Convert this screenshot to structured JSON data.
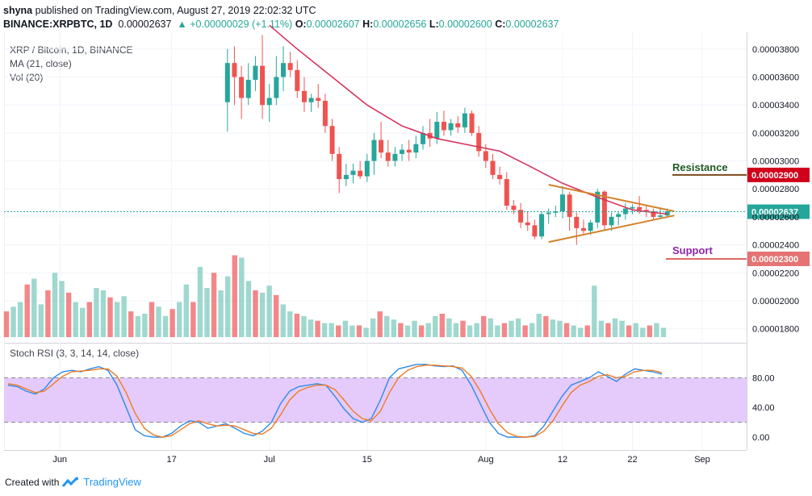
{
  "header": {
    "line1_user": "shyna",
    "line1_text": " published on TradingView.com, August 27, 2019 22:02:32 UTC",
    "symbol": "BINANCE:XRPBTC, 1D",
    "price": "0.00002637",
    "change": "▲ +0.00000029 (+1.11%)",
    "o_label": "O:",
    "o_val": "0.00002607",
    "h_label": "H:",
    "h_val": "0.00002656",
    "l_label": "L:",
    "l_val": "0.00002600",
    "c_label": "C:",
    "c_val": "0.00002637"
  },
  "legend": {
    "title": "XRP / Bitcoin, 1D, BINANCE",
    "ma": "MA (21, close)",
    "vol": "Vol (20)"
  },
  "annotations": {
    "resistance": "Resistance",
    "resistance_price": "0.00002900",
    "support": "Support",
    "support_price": "0.00002300",
    "last_price": "0.00002637"
  },
  "footer": {
    "created": "Created with",
    "brand": "TradingView"
  },
  "colors": {
    "up": "#7fcbbe",
    "down": "#ef5f62",
    "up_body": "#26a69a",
    "down_body": "#ef5350",
    "ma": "#d6335c",
    "trend": "#d3812b",
    "resistance_line": "#7a4a1a",
    "support_line": "#e06666",
    "rsi_k": "#2f8ae6",
    "rsi_d": "#f07b24",
    "rsi_band": "#e4cbfb"
  },
  "chart_data": {
    "type": "candlestick",
    "price_axis": {
      "ticks": [
        "0.00003800",
        "0.00003600",
        "0.00003400",
        "0.00003200",
        "0.00003000",
        "0.00002800",
        "0.00002600",
        "0.00002400",
        "0.00002200",
        "0.00002000",
        "0.00001800"
      ],
      "ylim": [
        1.7e-05,
        3.92e-05
      ]
    },
    "x_axis": {
      "ticks": [
        "Jun",
        "17",
        "Jul",
        "15",
        "Aug",
        "12",
        "22",
        "Sep"
      ]
    },
    "candles": [
      {
        "date": "2019-06-25",
        "o": 3.42e-05,
        "h": 3.8e-05,
        "l": 3.21e-05,
        "c": 3.7e-05
      },
      {
        "date": "2019-06-26",
        "o": 3.7e-05,
        "h": 3.82e-05,
        "l": 3.4e-05,
        "c": 3.6e-05
      },
      {
        "date": "2019-06-27",
        "o": 3.6e-05,
        "h": 3.68e-05,
        "l": 3.3e-05,
        "c": 3.45e-05
      },
      {
        "date": "2019-06-28",
        "o": 3.45e-05,
        "h": 3.7e-05,
        "l": 3.4e-05,
        "c": 3.58e-05
      },
      {
        "date": "2019-06-29",
        "o": 3.58e-05,
        "h": 3.75e-05,
        "l": 3.5e-05,
        "c": 3.68e-05
      },
      {
        "date": "2019-06-30",
        "o": 3.68e-05,
        "h": 3.9e-05,
        "l": 3.3e-05,
        "c": 3.4e-05
      },
      {
        "date": "2019-07-01",
        "o": 3.4e-05,
        "h": 3.55e-05,
        "l": 3.28e-05,
        "c": 3.45e-05
      },
      {
        "date": "2019-07-02",
        "o": 3.45e-05,
        "h": 3.75e-05,
        "l": 3.4e-05,
        "c": 3.6e-05
      },
      {
        "date": "2019-07-03",
        "o": 3.6e-05,
        "h": 3.82e-05,
        "l": 3.5e-05,
        "c": 3.7e-05
      },
      {
        "date": "2019-07-04",
        "o": 3.7e-05,
        "h": 3.78e-05,
        "l": 3.6e-05,
        "c": 3.65e-05
      },
      {
        "date": "2019-07-05",
        "o": 3.65e-05,
        "h": 3.72e-05,
        "l": 3.45e-05,
        "c": 3.5e-05
      },
      {
        "date": "2019-07-06",
        "o": 3.5e-05,
        "h": 3.6e-05,
        "l": 3.35e-05,
        "c": 3.42e-05
      },
      {
        "date": "2019-07-07",
        "o": 3.42e-05,
        "h": 3.48e-05,
        "l": 3.35e-05,
        "c": 3.45e-05
      },
      {
        "date": "2019-07-08",
        "o": 3.45e-05,
        "h": 3.55e-05,
        "l": 3.38e-05,
        "c": 3.43e-05
      },
      {
        "date": "2019-07-09",
        "o": 3.43e-05,
        "h": 3.48e-05,
        "l": 3.2e-05,
        "c": 3.25e-05
      },
      {
        "date": "2019-07-10",
        "o": 3.25e-05,
        "h": 3.3e-05,
        "l": 3e-05,
        "c": 3.05e-05
      },
      {
        "date": "2019-07-11",
        "o": 3.05e-05,
        "h": 3.1e-05,
        "l": 2.77e-05,
        "c": 2.87e-05
      },
      {
        "date": "2019-07-12",
        "o": 2.87e-05,
        "h": 2.98e-05,
        "l": 2.82e-05,
        "c": 2.9e-05
      },
      {
        "date": "2019-07-13",
        "o": 2.9e-05,
        "h": 2.98e-05,
        "l": 2.84e-05,
        "c": 2.93e-05
      },
      {
        "date": "2019-07-14",
        "o": 2.93e-05,
        "h": 3e-05,
        "l": 2.87e-05,
        "c": 2.89e-05
      },
      {
        "date": "2019-07-15",
        "o": 2.89e-05,
        "h": 3.05e-05,
        "l": 2.85e-05,
        "c": 3e-05
      },
      {
        "date": "2019-07-16",
        "o": 3e-05,
        "h": 3.2e-05,
        "l": 2.9e-05,
        "c": 3.15e-05
      },
      {
        "date": "2019-07-17",
        "o": 3.15e-05,
        "h": 3.28e-05,
        "l": 3.02e-05,
        "c": 3.06e-05
      },
      {
        "date": "2019-07-18",
        "o": 3.06e-05,
        "h": 3.15e-05,
        "l": 2.96e-05,
        "c": 3e-05
      },
      {
        "date": "2019-07-19",
        "o": 3e-05,
        "h": 3.1e-05,
        "l": 2.96e-05,
        "c": 3.05e-05
      },
      {
        "date": "2019-07-20",
        "o": 3.05e-05,
        "h": 3.12e-05,
        "l": 3e-05,
        "c": 3.08e-05
      },
      {
        "date": "2019-07-21",
        "o": 3.08e-05,
        "h": 3.15e-05,
        "l": 3e-05,
        "c": 3.06e-05
      },
      {
        "date": "2019-07-22",
        "o": 3.06e-05,
        "h": 3.18e-05,
        "l": 3.02e-05,
        "c": 3.12e-05
      },
      {
        "date": "2019-07-23",
        "o": 3.12e-05,
        "h": 3.25e-05,
        "l": 3.08e-05,
        "c": 3.2e-05
      },
      {
        "date": "2019-07-24",
        "o": 3.2e-05,
        "h": 3.3e-05,
        "l": 3.1e-05,
        "c": 3.16e-05
      },
      {
        "date": "2019-07-25",
        "o": 3.16e-05,
        "h": 3.35e-05,
        "l": 3.12e-05,
        "c": 3.28e-05
      },
      {
        "date": "2019-07-26",
        "o": 3.28e-05,
        "h": 3.36e-05,
        "l": 3.18e-05,
        "c": 3.22e-05
      },
      {
        "date": "2019-07-27",
        "o": 3.22e-05,
        "h": 3.3e-05,
        "l": 3.18e-05,
        "c": 3.27e-05
      },
      {
        "date": "2019-07-28",
        "o": 3.27e-05,
        "h": 3.32e-05,
        "l": 3.2e-05,
        "c": 3.24e-05
      },
      {
        "date": "2019-07-29",
        "o": 3.24e-05,
        "h": 3.38e-05,
        "l": 3.2e-05,
        "c": 3.34e-05
      },
      {
        "date": "2019-07-30",
        "o": 3.34e-05,
        "h": 3.36e-05,
        "l": 3.18e-05,
        "c": 3.2e-05
      },
      {
        "date": "2019-07-31",
        "o": 3.2e-05,
        "h": 3.25e-05,
        "l": 3.03e-05,
        "c": 3.07e-05
      },
      {
        "date": "2019-08-01",
        "o": 3.07e-05,
        "h": 3.12e-05,
        "l": 2.95e-05,
        "c": 3e-05
      },
      {
        "date": "2019-08-02",
        "o": 3e-05,
        "h": 3.05e-05,
        "l": 2.87e-05,
        "c": 2.9e-05
      },
      {
        "date": "2019-08-03",
        "o": 2.9e-05,
        "h": 2.96e-05,
        "l": 2.83e-05,
        "c": 2.87e-05
      },
      {
        "date": "2019-08-04",
        "o": 2.87e-05,
        "h": 2.92e-05,
        "l": 2.65e-05,
        "c": 2.68e-05
      },
      {
        "date": "2019-08-05",
        "o": 2.68e-05,
        "h": 2.72e-05,
        "l": 2.62e-05,
        "c": 2.65e-05
      },
      {
        "date": "2019-08-06",
        "o": 2.65e-05,
        "h": 2.7e-05,
        "l": 2.52e-05,
        "c": 2.56e-05
      },
      {
        "date": "2019-08-07",
        "o": 2.56e-05,
        "h": 2.64e-05,
        "l": 2.5e-05,
        "c": 2.54e-05
      },
      {
        "date": "2019-08-08",
        "o": 2.54e-05,
        "h": 2.58e-05,
        "l": 2.44e-05,
        "c": 2.46e-05
      },
      {
        "date": "2019-08-09",
        "o": 2.46e-05,
        "h": 2.64e-05,
        "l": 2.44e-05,
        "c": 2.62e-05
      },
      {
        "date": "2019-08-10",
        "o": 2.62e-05,
        "h": 2.66e-05,
        "l": 2.55e-05,
        "c": 2.63e-05
      },
      {
        "date": "2019-08-11",
        "o": 2.63e-05,
        "h": 2.68e-05,
        "l": 2.6e-05,
        "c": 2.64e-05
      },
      {
        "date": "2019-08-12",
        "o": 2.64e-05,
        "h": 2.82e-05,
        "l": 2.59e-05,
        "c": 2.76e-05
      },
      {
        "date": "2019-08-13",
        "o": 2.76e-05,
        "h": 2.78e-05,
        "l": 2.5e-05,
        "c": 2.6e-05
      },
      {
        "date": "2019-08-14",
        "o": 2.6e-05,
        "h": 2.63e-05,
        "l": 2.4e-05,
        "c": 2.52e-05
      },
      {
        "date": "2019-08-15",
        "o": 2.52e-05,
        "h": 2.58e-05,
        "l": 2.48e-05,
        "c": 2.5e-05
      },
      {
        "date": "2019-08-16",
        "o": 2.5e-05,
        "h": 2.58e-05,
        "l": 2.47e-05,
        "c": 2.56e-05
      },
      {
        "date": "2019-08-17",
        "o": 2.56e-05,
        "h": 2.8e-05,
        "l": 2.52e-05,
        "c": 2.78e-05
      },
      {
        "date": "2019-08-18",
        "o": 2.78e-05,
        "h": 2.79e-05,
        "l": 2.5e-05,
        "c": 2.54e-05
      },
      {
        "date": "2019-08-19",
        "o": 2.54e-05,
        "h": 2.63e-05,
        "l": 2.5e-05,
        "c": 2.6e-05
      },
      {
        "date": "2019-08-20",
        "o": 2.6e-05,
        "h": 2.64e-05,
        "l": 2.54e-05,
        "c": 2.62e-05
      },
      {
        "date": "2019-08-21",
        "o": 2.62e-05,
        "h": 2.7e-05,
        "l": 2.58e-05,
        "c": 2.66e-05
      },
      {
        "date": "2019-08-22",
        "o": 2.66e-05,
        "h": 2.69e-05,
        "l": 2.62e-05,
        "c": 2.67e-05
      },
      {
        "date": "2019-08-23",
        "o": 2.67e-05,
        "h": 2.75e-05,
        "l": 2.62e-05,
        "c": 2.65e-05
      },
      {
        "date": "2019-08-24",
        "o": 2.65e-05,
        "h": 2.68e-05,
        "l": 2.6e-05,
        "c": 2.64e-05
      },
      {
        "date": "2019-08-25",
        "o": 2.64e-05,
        "h": 2.66e-05,
        "l": 2.58e-05,
        "c": 2.6e-05
      },
      {
        "date": "2019-08-26",
        "o": 2.6e-05,
        "h": 2.66e-05,
        "l": 2.59e-05,
        "c": 2.61e-05
      },
      {
        "date": "2019-08-27",
        "o": 2.61e-05,
        "h": 2.66e-05,
        "l": 2.6e-05,
        "c": 2.64e-05
      }
    ],
    "ma21": [
      [
        "2019-07-01",
        3.97e-05
      ],
      [
        "2019-07-05",
        3.8e-05
      ],
      [
        "2019-07-10",
        3.6e-05
      ],
      [
        "2019-07-15",
        3.4e-05
      ],
      [
        "2019-07-20",
        3.25e-05
      ],
      [
        "2019-07-25",
        3.16e-05
      ],
      [
        "2019-07-30",
        3.11e-05
      ],
      [
        "2019-08-03",
        3.07e-05
      ],
      [
        "2019-08-07",
        2.97e-05
      ],
      [
        "2019-08-12",
        2.84e-05
      ],
      [
        "2019-08-17",
        2.74e-05
      ],
      [
        "2019-08-22",
        2.65e-05
      ],
      [
        "2019-08-27",
        2.62e-05
      ]
    ],
    "volume": [
      0.22,
      0.26,
      0.3,
      0.45,
      0.5,
      0.28,
      0.4,
      0.55,
      0.48,
      0.38,
      0.3,
      0.25,
      0.3,
      0.42,
      0.4,
      0.34,
      0.3,
      0.35,
      0.22,
      0.18,
      0.2,
      0.3,
      0.26,
      0.18,
      0.24,
      0.3,
      0.45,
      0.3,
      0.6,
      0.42,
      0.55,
      0.4,
      0.52,
      0.7,
      0.68,
      0.48,
      0.4,
      0.38,
      0.44,
      0.36,
      0.28,
      0.22,
      0.2,
      0.18,
      0.15,
      0.14,
      0.12,
      0.12,
      0.1,
      0.14,
      0.1,
      0.1,
      0.08,
      0.16,
      0.22,
      0.18,
      0.15,
      0.12,
      0.1,
      0.14,
      0.1,
      0.12,
      0.18,
      0.2,
      0.16,
      0.12,
      0.14,
      0.1,
      0.12,
      0.18,
      0.16,
      0.1,
      0.12,
      0.14,
      0.16,
      0.1,
      0.12,
      0.2,
      0.18,
      0.15,
      0.14,
      0.12,
      0.1,
      0.08,
      0.1,
      0.44,
      0.14,
      0.12,
      0.16,
      0.14,
      0.1,
      0.12,
      0.08,
      0.1,
      0.12,
      0.08
    ],
    "rsi": {
      "label": "Stoch RSI (3, 3, 14, 14, close)",
      "ticks": [
        "80.00",
        "40.00",
        "0.00"
      ],
      "upper": 80,
      "lower": 20,
      "k": [
        70,
        68,
        62,
        58,
        65,
        80,
        88,
        90,
        88,
        92,
        95,
        90,
        70,
        40,
        10,
        2,
        0,
        0,
        5,
        15,
        22,
        20,
        12,
        15,
        18,
        12,
        5,
        2,
        8,
        20,
        45,
        62,
        68,
        70,
        72,
        70,
        55,
        38,
        25,
        20,
        25,
        50,
        80,
        92,
        95,
        98,
        98,
        96,
        95,
        96,
        90,
        70,
        45,
        20,
        5,
        0,
        0,
        0,
        2,
        15,
        35,
        55,
        70,
        75,
        80,
        88,
        82,
        75,
        85,
        92,
        90,
        88,
        85
      ],
      "d": [
        72,
        70,
        65,
        60,
        62,
        72,
        82,
        88,
        89,
        90,
        92,
        92,
        82,
        60,
        32,
        12,
        3,
        0,
        2,
        10,
        18,
        22,
        18,
        15,
        16,
        15,
        10,
        5,
        4,
        12,
        30,
        50,
        62,
        67,
        70,
        70,
        64,
        50,
        35,
        25,
        22,
        35,
        60,
        80,
        90,
        95,
        97,
        97,
        96,
        95,
        93,
        82,
        62,
        38,
        18,
        6,
        1,
        0,
        1,
        8,
        22,
        42,
        60,
        70,
        75,
        82,
        84,
        80,
        82,
        88,
        90,
        90,
        87
      ]
    }
  }
}
